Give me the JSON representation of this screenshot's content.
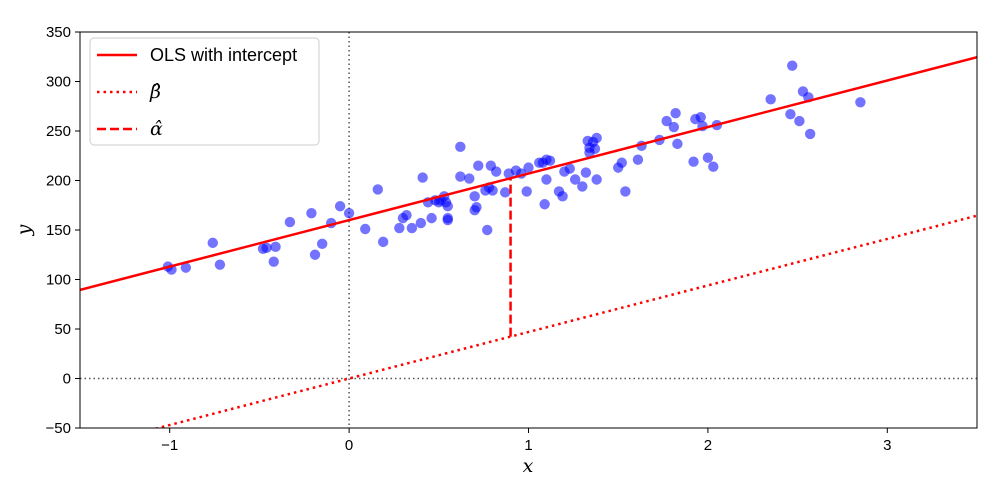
{
  "chart_data": {
    "type": "scatter",
    "title": "",
    "xlabel": "x",
    "ylabel": "y",
    "xlim": [
      -1.5,
      3.5
    ],
    "ylim": [
      -50,
      350
    ],
    "xticks": [
      -1,
      0,
      1,
      2,
      3
    ],
    "xtick_labels": [
      "−1",
      "0",
      "1",
      "2",
      "3"
    ],
    "yticks": [
      -50,
      0,
      50,
      100,
      150,
      200,
      250,
      300,
      350
    ],
    "ytick_labels": [
      "−50",
      "0",
      "50",
      "100",
      "150",
      "200",
      "250",
      "300",
      "350"
    ],
    "grid": false,
    "reference_lines": {
      "x0": 0,
      "y0": 0,
      "style": "dotted",
      "color": "#555555"
    },
    "legend_placement": "upper-left",
    "colors": {
      "points": "#0000ff",
      "lines": "#ff0000"
    },
    "scatter": {
      "points": [
        [
          -1.01,
          113
        ],
        [
          -0.99,
          110
        ],
        [
          -0.91,
          112
        ],
        [
          -0.76,
          137
        ],
        [
          -0.72,
          115
        ],
        [
          -0.48,
          131
        ],
        [
          -0.46,
          132
        ],
        [
          -0.42,
          118
        ],
        [
          -0.41,
          133
        ],
        [
          -0.33,
          158
        ],
        [
          -0.21,
          167
        ],
        [
          -0.19,
          125
        ],
        [
          -0.15,
          136
        ],
        [
          -0.1,
          157
        ],
        [
          -0.05,
          174
        ],
        [
          0.0,
          167
        ],
        [
          0.09,
          151
        ],
        [
          0.16,
          191
        ],
        [
          0.19,
          138
        ],
        [
          0.28,
          152
        ],
        [
          0.3,
          162
        ],
        [
          0.32,
          165
        ],
        [
          0.35,
          152
        ],
        [
          0.4,
          157
        ],
        [
          0.41,
          203
        ],
        [
          0.44,
          178
        ],
        [
          0.46,
          162
        ],
        [
          0.48,
          180
        ],
        [
          0.5,
          178
        ],
        [
          0.51,
          180
        ],
        [
          0.53,
          184
        ],
        [
          0.54,
          178
        ],
        [
          0.55,
          174
        ],
        [
          0.55,
          160
        ],
        [
          0.55,
          162
        ],
        [
          0.62,
          204
        ],
        [
          0.62,
          234
        ],
        [
          0.67,
          202
        ],
        [
          0.7,
          184
        ],
        [
          0.7,
          170
        ],
        [
          0.71,
          173
        ],
        [
          0.72,
          215
        ],
        [
          0.76,
          190
        ],
        [
          0.77,
          150
        ],
        [
          0.78,
          193
        ],
        [
          0.79,
          215
        ],
        [
          0.8,
          190
        ],
        [
          0.82,
          209
        ],
        [
          0.87,
          188
        ],
        [
          0.89,
          207
        ],
        [
          0.93,
          210
        ],
        [
          0.96,
          207
        ],
        [
          0.99,
          189
        ],
        [
          1.0,
          213
        ],
        [
          1.06,
          218
        ],
        [
          1.08,
          218
        ],
        [
          1.09,
          176
        ],
        [
          1.1,
          201
        ],
        [
          1.1,
          221
        ],
        [
          1.12,
          220
        ],
        [
          1.17,
          189
        ],
        [
          1.19,
          184
        ],
        [
          1.2,
          209
        ],
        [
          1.23,
          212
        ],
        [
          1.26,
          201
        ],
        [
          1.3,
          194
        ],
        [
          1.32,
          208
        ],
        [
          1.33,
          240
        ],
        [
          1.34,
          233
        ],
        [
          1.34,
          228
        ],
        [
          1.36,
          239
        ],
        [
          1.37,
          232
        ],
        [
          1.38,
          201
        ],
        [
          1.38,
          243
        ],
        [
          1.5,
          213
        ],
        [
          1.52,
          218
        ],
        [
          1.54,
          189
        ],
        [
          1.61,
          221
        ],
        [
          1.63,
          235
        ],
        [
          1.73,
          241
        ],
        [
          1.77,
          260
        ],
        [
          1.81,
          254
        ],
        [
          1.82,
          268
        ],
        [
          1.83,
          237
        ],
        [
          1.92,
          219
        ],
        [
          1.93,
          262
        ],
        [
          1.96,
          264
        ],
        [
          1.97,
          255
        ],
        [
          2.0,
          223
        ],
        [
          2.03,
          214
        ],
        [
          2.05,
          256
        ],
        [
          2.35,
          282
        ],
        [
          2.46,
          267
        ],
        [
          2.47,
          316
        ],
        [
          2.51,
          260
        ],
        [
          2.53,
          290
        ],
        [
          2.56,
          284
        ],
        [
          2.57,
          247
        ],
        [
          2.85,
          279
        ]
      ]
    },
    "lines": [
      {
        "name": "OLS with intercept",
        "style": "solid",
        "intercept": 160,
        "slope": 47
      },
      {
        "name": "β̂",
        "style": "dotted",
        "intercept": 0,
        "slope": 47
      }
    ],
    "segment": {
      "name": "α̂",
      "style": "dashed",
      "x": 0.9,
      "y_from": 42.3,
      "y_to": 202.3
    }
  }
}
